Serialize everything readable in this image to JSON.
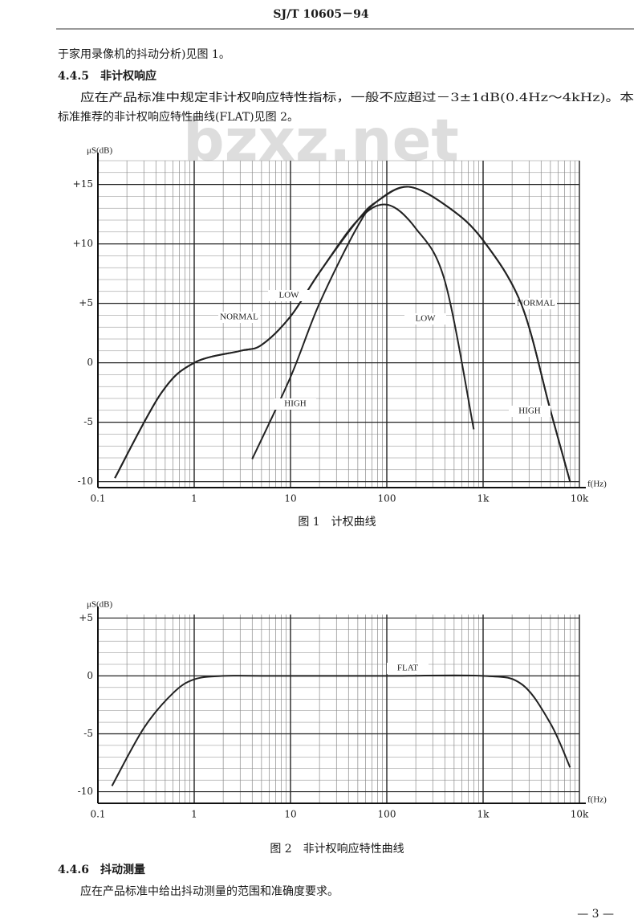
{
  "header": {
    "code": "SJ/T 10605－94"
  },
  "watermark": "bzxz.net",
  "text": {
    "line1": "于家用录像机的抖动分析)见图 1。",
    "section": "4.4.5　非计权响应",
    "para1": "应在产品标准中规定非计权响应特性指标，一般不应超过－3±1dB(0.4Hz～4kHz)。本",
    "para2": "标准推荐的非计权响应特性曲线(FLAT)见图 2。"
  },
  "figures": [
    {
      "caption": "图 1　计权曲线",
      "chart_data": {
        "type": "line",
        "ylabel": "μS(dB)",
        "xlabel": "f(Hz)",
        "xscale": "log",
        "xlim": [
          0.1,
          10000
        ],
        "ylim": [
          -10.5,
          17
        ],
        "xticks": [
          0.1,
          1,
          10,
          100,
          {
            "value": 1000,
            "label": "1k"
          },
          {
            "value": 10000,
            "label": "10k"
          }
        ],
        "yticks": [
          {
            "value": 15,
            "label": "+15"
          },
          {
            "value": 10,
            "label": "+10"
          },
          {
            "value": 5,
            "label": "+5"
          },
          0,
          -5,
          -10
        ],
        "grid": true,
        "series": [
          {
            "name": "NORMAL",
            "color": "#222222",
            "x": [
              0.15,
              0.45,
              1,
              3,
              5,
              10,
              20,
              50,
              80,
              170,
              450,
              1000,
              2500,
              5000,
              8000
            ],
            "values": [
              -9.7,
              -2.6,
              0,
              1,
              1.5,
              3.9,
              7.6,
              12,
              13.6,
              14.8,
              13,
              10.3,
              4.9,
              -4,
              -10
            ]
          },
          {
            "name": "LOW",
            "color": "#222222",
            "x": [
              0.15,
              0.45,
              1,
              3,
              5,
              10,
              20,
              50,
              100,
              200,
              400,
              800
            ],
            "values": [
              -9.7,
              -2.6,
              0,
              1,
              1.5,
              3.9,
              7.6,
              12,
              13.3,
              11.3,
              6.9,
              -5.6
            ]
          },
          {
            "name": "HIGH",
            "color": "#222222",
            "x": [
              4,
              10,
              20,
              50,
              80,
              170,
              450,
              1000,
              2500,
              5000,
              8000
            ],
            "values": [
              -8.1,
              -1.2,
              5,
              11.5,
              13.6,
              14.8,
              13,
              10.3,
              4.9,
              -4,
              -10
            ]
          }
        ]
      }
    },
    {
      "caption": "图 2　非计权响应特性曲线",
      "chart_data": {
        "type": "line",
        "ylabel": "μS(dB)",
        "xlabel": "f(Hz)",
        "xscale": "log",
        "xlim": [
          0.1,
          10000
        ],
        "ylim": [
          -11,
          5.3
        ],
        "xticks": [
          0.1,
          1,
          10,
          100,
          {
            "value": 1000,
            "label": "1k"
          },
          {
            "value": 10000,
            "label": "10k"
          }
        ],
        "yticks": [
          {
            "value": 5,
            "label": "+5"
          },
          0,
          -5,
          -10
        ],
        "grid": true,
        "series": [
          {
            "name": "FLAT",
            "color": "#222222",
            "x": [
              0.14,
              0.3,
              0.6,
              1,
              2,
              5,
              100,
              1000,
              2500,
              5000,
              8000
            ],
            "values": [
              -9.5,
              -4.5,
              -1.5,
              -0.3,
              0,
              0,
              0,
              0,
              -0.7,
              -4.1,
              -7.9
            ]
          }
        ]
      }
    }
  ],
  "section2": {
    "heading": "4.4.6　抖动测量",
    "para": "应在产品标准中给出抖动测量的范围和准确度要求。"
  },
  "footer": {
    "page": "— 3 —"
  }
}
